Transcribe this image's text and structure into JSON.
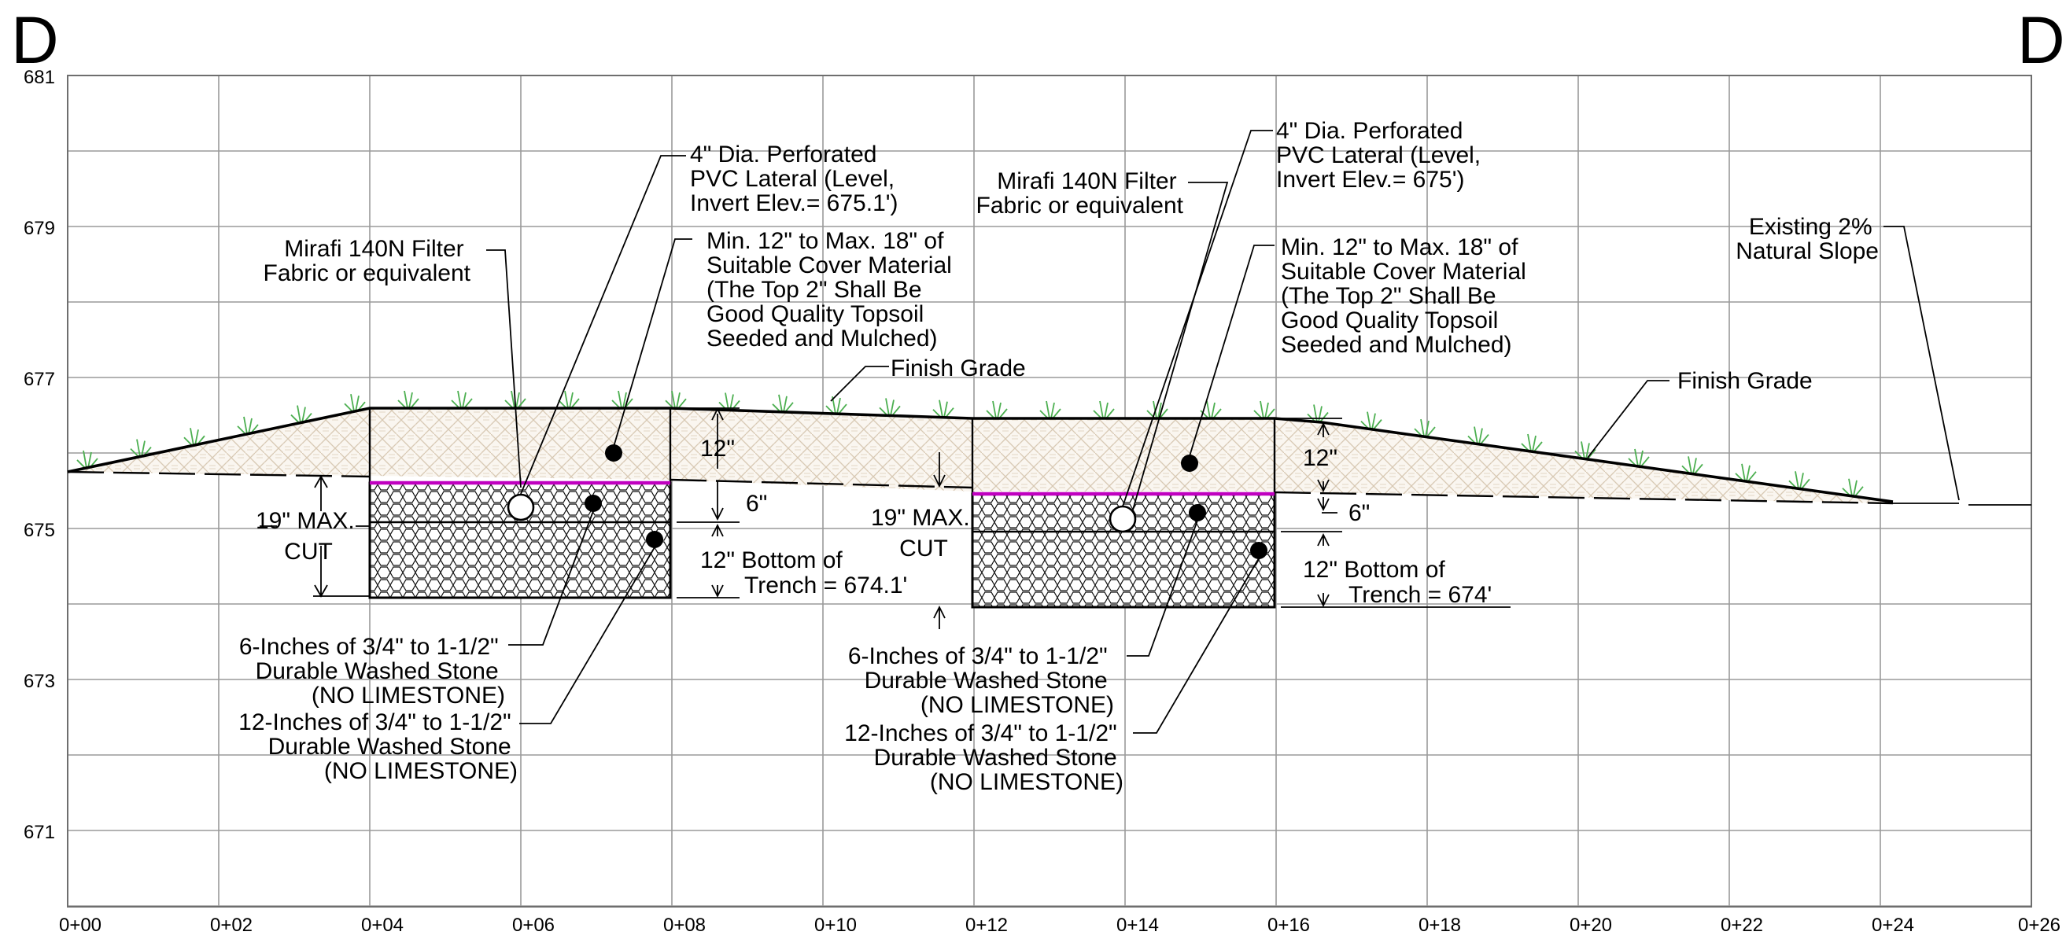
{
  "section": {
    "start_label": "D",
    "end_label": "D'"
  },
  "axes": {
    "elevations": [
      "681",
      "679",
      "677",
      "675",
      "673",
      "671"
    ],
    "stations": [
      "0+00",
      "0+02",
      "0+04",
      "0+06",
      "0+08",
      "0+10",
      "0+12",
      "0+14",
      "0+16",
      "0+18",
      "0+20",
      "0+22",
      "0+24",
      "0+26"
    ]
  },
  "trench_left": {
    "lateral": [
      "4\" Dia. Perforated",
      "PVC Lateral (Level,",
      "Invert Elev.= 675.1')"
    ],
    "fabric": [
      "Mirafi 140N Filter",
      "Fabric or equivalent"
    ],
    "cover": [
      "Min. 12\" to Max. 18\" of",
      "Suitable Cover Material",
      "(The Top 2\" Shall Be",
      "Good Quality Topsoil",
      "Seeded and Mulched)"
    ],
    "finish_grade": "Finish Grade",
    "dim_cover": "12\"",
    "dim_upper_stone": "6\"",
    "dim_lower_stone": [
      "12\" Bottom of",
      "Trench = 674.1'"
    ],
    "max_cut": [
      "19\" MAX.",
      "CUT"
    ],
    "stone_6": [
      "6-Inches of 3/4\" to 1-1/2\"",
      "Durable Washed  Stone",
      "(NO LIMESTONE)"
    ],
    "stone_12": [
      "12-Inches of 3/4\" to 1-1/2\"",
      "Durable Washed  Stone",
      "(NO LIMESTONE)"
    ]
  },
  "trench_right": {
    "lateral": [
      "4\" Dia. Perforated",
      "PVC Lateral (Level,",
      "Invert Elev.= 675')"
    ],
    "fabric": [
      "Mirafi 140N Filter",
      "Fabric or equivalent"
    ],
    "cover": [
      "Min. 12\" to Max. 18\" of",
      "Suitable Cover Material",
      "(The Top 2\" Shall Be",
      "Good Quality Topsoil",
      "Seeded and Mulched)"
    ],
    "finish_grade": "Finish Grade",
    "dim_cover": "12\"",
    "dim_upper_stone": "6\"",
    "dim_lower_stone": [
      "12\" Bottom of",
      "Trench = 674'"
    ],
    "max_cut": [
      "19\" MAX.",
      "CUT"
    ],
    "stone_6": [
      "6-Inches of 3/4\" to 1-1/2\"",
      "Durable Washed  Stone",
      "(NO LIMESTONE)"
    ],
    "stone_12": [
      "12-Inches of 3/4\" to 1-1/2\"",
      "Durable Washed  Stone",
      "(NO LIMESTONE)"
    ]
  },
  "existing_slope": [
    "Existing 2%",
    "Natural Slope"
  ],
  "colors": {
    "fabric": "#c000c0",
    "grass": "#4caf50",
    "fill_hatch": "#d8c9b4",
    "grid": "#9a9a9a"
  }
}
